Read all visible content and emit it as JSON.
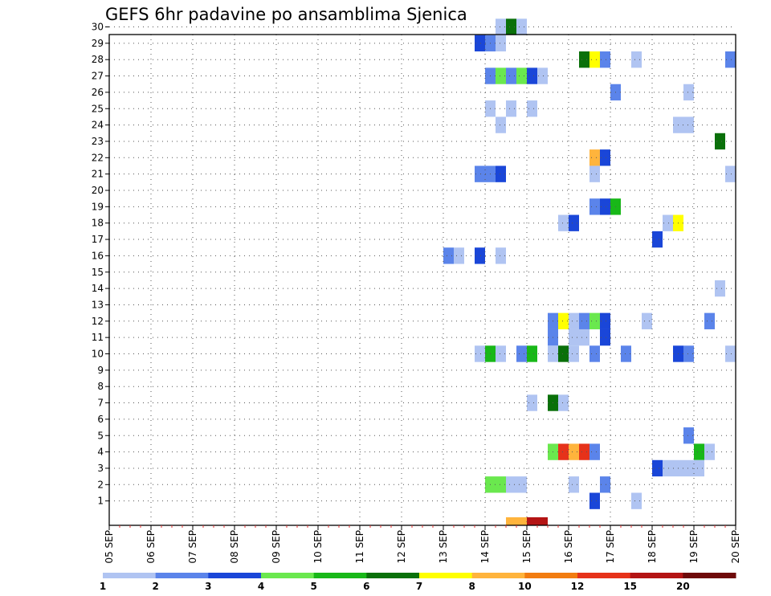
{
  "chart_data": {
    "type": "heatmap",
    "title": "GEFS 6hr padavine po ansamblima Sjenica",
    "xlabel": "",
    "ylabel": "",
    "x_tick_labels": [
      "05 SEP",
      "06 SEP",
      "07 SEP",
      "08 SEP",
      "09 SEP",
      "10 SEP",
      "11 SEP",
      "12 SEP",
      "13 SEP",
      "14 SEP",
      "15 SEP",
      "16 SEP",
      "17 SEP",
      "18 SEP",
      "19 SEP",
      "20 SEP"
    ],
    "x_range_days": [
      0,
      15
    ],
    "y_tick_labels": [
      "1",
      "2",
      "3",
      "4",
      "5",
      "6",
      "7",
      "8",
      "9",
      "10",
      "11",
      "12",
      "13",
      "14",
      "15",
      "16",
      "17",
      "18",
      "19",
      "20",
      "21",
      "22",
      "23",
      "24",
      "25",
      "26",
      "27",
      "28",
      "29",
      "30"
    ],
    "y_range": [
      0,
      30
    ],
    "grid": true,
    "color_scale": {
      "labels": [
        "1",
        "2",
        "3",
        "4",
        "5",
        "6",
        "7",
        "8",
        "10",
        "12",
        "15",
        "20"
      ],
      "colors": [
        "#b0c4f2",
        "#5b84ea",
        "#1a46d8",
        "#6ae84e",
        "#18b818",
        "#0a700a",
        "#ffff00",
        "#ffb43c",
        "#f27c10",
        "#e6321a",
        "#b41414",
        "#6e0a0a"
      ]
    },
    "cells": [
      {
        "m": 30,
        "d": 9.25,
        "c": 0
      },
      {
        "m": 30,
        "d": 9.5,
        "c": 5
      },
      {
        "m": 30,
        "d": 9.75,
        "c": 0
      },
      {
        "m": 29,
        "d": 8.75,
        "c": 2
      },
      {
        "m": 29,
        "d": 9.0,
        "c": 1
      },
      {
        "m": 29,
        "d": 9.25,
        "c": 0
      },
      {
        "m": 28,
        "d": 11.25,
        "c": 5
      },
      {
        "m": 28,
        "d": 11.5,
        "c": 6
      },
      {
        "m": 28,
        "d": 11.75,
        "c": 1
      },
      {
        "m": 28,
        "d": 12.5,
        "c": 0
      },
      {
        "m": 28,
        "d": 14.75,
        "c": 1
      },
      {
        "m": 27,
        "d": 9.0,
        "c": 1
      },
      {
        "m": 27,
        "d": 9.25,
        "c": 3
      },
      {
        "m": 27,
        "d": 9.5,
        "c": 1
      },
      {
        "m": 27,
        "d": 9.75,
        "c": 3
      },
      {
        "m": 27,
        "d": 10.0,
        "c": 2
      },
      {
        "m": 27,
        "d": 10.25,
        "c": 0
      },
      {
        "m": 26,
        "d": 12.0,
        "c": 1
      },
      {
        "m": 26,
        "d": 13.75,
        "c": 0
      },
      {
        "m": 25,
        "d": 9.0,
        "c": 0
      },
      {
        "m": 25,
        "d": 9.5,
        "c": 0
      },
      {
        "m": 25,
        "d": 10.0,
        "c": 0
      },
      {
        "m": 24,
        "d": 9.25,
        "c": 0
      },
      {
        "m": 24,
        "d": 13.5,
        "c": 0
      },
      {
        "m": 24,
        "d": 13.75,
        "c": 0
      },
      {
        "m": 23,
        "d": 14.5,
        "c": 5
      },
      {
        "m": 22,
        "d": 11.5,
        "c": 7
      },
      {
        "m": 22,
        "d": 11.75,
        "c": 2
      },
      {
        "m": 21,
        "d": 8.75,
        "c": 1
      },
      {
        "m": 21,
        "d": 9.0,
        "c": 1
      },
      {
        "m": 21,
        "d": 9.25,
        "c": 2
      },
      {
        "m": 21,
        "d": 11.5,
        "c": 0
      },
      {
        "m": 21,
        "d": 14.75,
        "c": 0
      },
      {
        "m": 19,
        "d": 11.5,
        "c": 1
      },
      {
        "m": 19,
        "d": 11.75,
        "c": 2
      },
      {
        "m": 19,
        "d": 12.0,
        "c": 4
      },
      {
        "m": 18,
        "d": 10.75,
        "c": 0
      },
      {
        "m": 18,
        "d": 11.0,
        "c": 2
      },
      {
        "m": 18,
        "d": 13.25,
        "c": 0
      },
      {
        "m": 18,
        "d": 13.5,
        "c": 6
      },
      {
        "m": 17,
        "d": 13.0,
        "c": 2
      },
      {
        "m": 16,
        "d": 8.0,
        "c": 1
      },
      {
        "m": 16,
        "d": 8.25,
        "c": 0
      },
      {
        "m": 16,
        "d": 8.75,
        "c": 2
      },
      {
        "m": 16,
        "d": 9.25,
        "c": 0
      },
      {
        "m": 14,
        "d": 14.5,
        "c": 0
      },
      {
        "m": 12,
        "d": 10.5,
        "c": 1
      },
      {
        "m": 12,
        "d": 10.75,
        "c": 6
      },
      {
        "m": 12,
        "d": 11.0,
        "c": 0
      },
      {
        "m": 12,
        "d": 11.25,
        "c": 1
      },
      {
        "m": 12,
        "d": 11.5,
        "c": 3
      },
      {
        "m": 12,
        "d": 11.75,
        "c": 2
      },
      {
        "m": 12,
        "d": 12.75,
        "c": 0
      },
      {
        "m": 12,
        "d": 14.25,
        "c": 1
      },
      {
        "m": 11,
        "d": 10.5,
        "c": 1
      },
      {
        "m": 11,
        "d": 11.0,
        "c": 0
      },
      {
        "m": 11,
        "d": 11.25,
        "c": 0
      },
      {
        "m": 11,
        "d": 11.75,
        "c": 2
      },
      {
        "m": 10,
        "d": 8.75,
        "c": 0
      },
      {
        "m": 10,
        "d": 9.0,
        "c": 4
      },
      {
        "m": 10,
        "d": 9.25,
        "c": 0
      },
      {
        "m": 10,
        "d": 9.75,
        "c": 1
      },
      {
        "m": 10,
        "d": 10.0,
        "c": 4
      },
      {
        "m": 10,
        "d": 10.5,
        "c": 0
      },
      {
        "m": 10,
        "d": 10.75,
        "c": 5
      },
      {
        "m": 10,
        "d": 11.0,
        "c": 0
      },
      {
        "m": 10,
        "d": 11.5,
        "c": 1
      },
      {
        "m": 10,
        "d": 12.25,
        "c": 1
      },
      {
        "m": 10,
        "d": 13.5,
        "c": 2
      },
      {
        "m": 10,
        "d": 13.75,
        "c": 1
      },
      {
        "m": 10,
        "d": 14.75,
        "c": 0
      },
      {
        "m": 7,
        "d": 10.0,
        "c": 0
      },
      {
        "m": 7,
        "d": 10.5,
        "c": 5
      },
      {
        "m": 7,
        "d": 10.75,
        "c": 0
      },
      {
        "m": 5,
        "d": 13.75,
        "c": 1
      },
      {
        "m": 4,
        "d": 10.5,
        "c": 3
      },
      {
        "m": 4,
        "d": 10.75,
        "c": 9
      },
      {
        "m": 4,
        "d": 11.0,
        "c": 7
      },
      {
        "m": 4,
        "d": 11.25,
        "c": 9
      },
      {
        "m": 4,
        "d": 11.5,
        "c": 1
      },
      {
        "m": 4,
        "d": 14.0,
        "c": 4
      },
      {
        "m": 4,
        "d": 14.25,
        "c": 0
      },
      {
        "m": 3,
        "d": 13.0,
        "c": 2
      },
      {
        "m": 3,
        "d": 13.25,
        "c": 0
      },
      {
        "m": 3,
        "d": 13.5,
        "c": 0
      },
      {
        "m": 3,
        "d": 13.75,
        "c": 0
      },
      {
        "m": 3,
        "d": 14.0,
        "c": 0
      },
      {
        "m": 2,
        "d": 9.0,
        "c": 3
      },
      {
        "m": 2,
        "d": 9.25,
        "c": 3
      },
      {
        "m": 2,
        "d": 9.5,
        "c": 0
      },
      {
        "m": 2,
        "d": 9.75,
        "c": 0
      },
      {
        "m": 2,
        "d": 11.0,
        "c": 0
      },
      {
        "m": 2,
        "d": 11.75,
        "c": 1
      },
      {
        "m": 1,
        "d": 11.5,
        "c": 2
      },
      {
        "m": 1,
        "d": 12.5,
        "c": 0
      }
    ],
    "ensemble_mean_bar": [
      {
        "d": 9.5,
        "c": 7
      },
      {
        "d": 9.75,
        "c": 7
      },
      {
        "d": 10.0,
        "c": 10
      },
      {
        "d": 10.25,
        "c": 10
      }
    ]
  }
}
